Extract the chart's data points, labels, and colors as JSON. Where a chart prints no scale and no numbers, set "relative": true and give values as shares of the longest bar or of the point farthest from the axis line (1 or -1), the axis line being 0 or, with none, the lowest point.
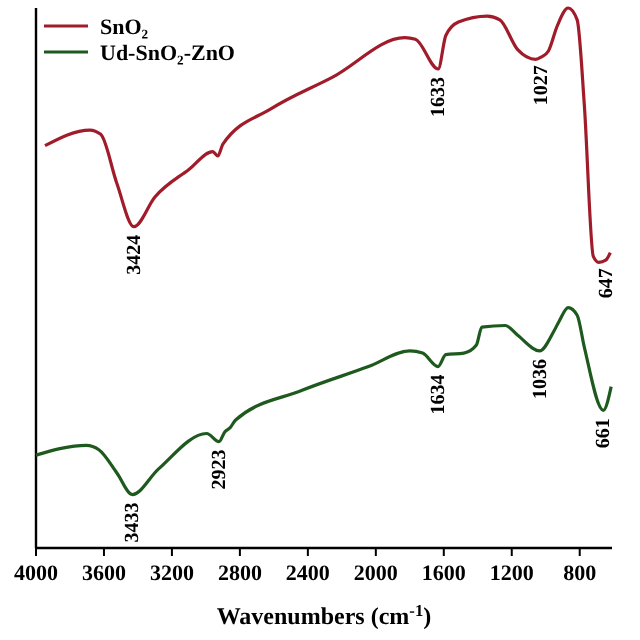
{
  "chart_data": {
    "type": "line",
    "relative": true,
    "xlabel": "Wavenumbers (cm$^{-1}$)",
    "xlim": [
      4000,
      610
    ],
    "xticks": [
      4000,
      3600,
      3200,
      2800,
      2400,
      2000,
      1600,
      1200,
      800
    ],
    "legend": "top left",
    "grid": false,
    "marker": "none",
    "line_style": "solid",
    "series": [
      {
        "name": "SnO₂",
        "color": "#a01c2a",
        "x": [
          3947,
          3683,
          3619,
          3524,
          3424,
          3300,
          3100,
          2960,
          2930,
          2900,
          2613,
          2254,
          1830,
          1767,
          1633,
          1588,
          1514,
          1344,
          1270,
          1165,
          1059,
          1027,
          985,
          932,
          868,
          815,
          773,
          720,
          688,
          647,
          620
        ],
        "values": [
          0.745,
          0.774,
          0.766,
          0.675,
          0.595,
          0.65,
          0.701,
          0.734,
          0.726,
          0.748,
          0.814,
          0.872,
          0.945,
          0.942,
          0.887,
          0.949,
          0.974,
          0.985,
          0.978,
          0.923,
          0.905,
          0.909,
          0.92,
          0.967,
          1.0,
          0.978,
          0.821,
          0.54,
          0.529,
          0.533,
          0.547
        ]
      },
      {
        "name": "Ud-SnO₂-ZnO",
        "color": "#1e5a1e",
        "x": [
          4000,
          3704,
          3630,
          3524,
          3433,
          3280,
          2995,
          2923,
          2889,
          2857,
          2825,
          2434,
          2043,
          1800,
          1725,
          1634,
          1588,
          1482,
          1408,
          1376,
          1238,
          1165,
          1036,
          953,
          921,
          868,
          815,
          773,
          661,
          615
        ],
        "values": [
          0.172,
          0.19,
          0.182,
          0.139,
          0.099,
          0.146,
          0.212,
          0.197,
          0.215,
          0.223,
          0.237,
          0.292,
          0.336,
          0.365,
          0.361,
          0.336,
          0.358,
          0.361,
          0.376,
          0.409,
          0.412,
          0.394,
          0.365,
          0.401,
          0.42,
          0.445,
          0.431,
          0.372,
          0.255,
          0.299
        ]
      }
    ],
    "annotations": [
      {
        "text": "3424",
        "x": 3424,
        "y": 0.595
      },
      {
        "text": "1633",
        "x": 1633,
        "y": 0.887
      },
      {
        "text": "1027",
        "x": 1027,
        "y": 0.909
      },
      {
        "text": "647",
        "x": 647,
        "y": 0.533
      },
      {
        "text": "3433",
        "x": 3433,
        "y": 0.099
      },
      {
        "text": "2923",
        "x": 2923,
        "y": 0.197
      },
      {
        "text": "1634",
        "x": 1634,
        "y": 0.336
      },
      {
        "text": "1036",
        "x": 1036,
        "y": 0.365
      },
      {
        "text": "661",
        "x": 661,
        "y": 0.255
      }
    ]
  }
}
